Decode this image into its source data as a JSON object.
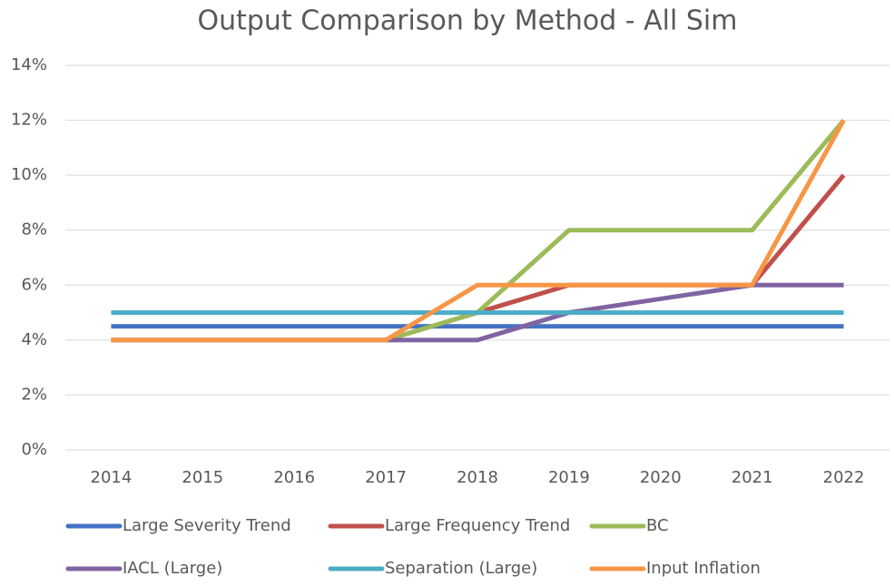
{
  "chart_data": {
    "type": "line",
    "title": "Output Comparison by Method - All Sim",
    "categories": [
      "2014",
      "2015",
      "2016",
      "2017",
      "2018",
      "2019",
      "2020",
      "2021",
      "2022"
    ],
    "series": [
      {
        "name": "Large Severity Trend",
        "color": "#4472c4",
        "values": [
          4.5,
          4.5,
          4.5,
          4.5,
          4.5,
          4.5,
          4.5,
          4.5,
          4.5
        ]
      },
      {
        "name": "Large Frequency Trend",
        "color": "#c0504d",
        "values": [
          4,
          4,
          4,
          4,
          5,
          6,
          6,
          6,
          10
        ]
      },
      {
        "name": "BC",
        "color": "#9bbb59",
        "values": [
          4,
          4,
          4,
          4,
          5,
          8,
          8,
          8,
          12
        ]
      },
      {
        "name": "IACL (Large)",
        "color": "#8064a2",
        "values": [
          4,
          4,
          4,
          4,
          4,
          5,
          5.5,
          6,
          6
        ]
      },
      {
        "name": "Separation (Large)",
        "color": "#4bacc6",
        "values": [
          5,
          5,
          5,
          5,
          5,
          5,
          5,
          5,
          5
        ]
      },
      {
        "name": "Input Inflation",
        "color": "#f79646",
        "values": [
          4,
          4,
          4,
          4,
          6,
          6,
          6,
          6,
          12
        ]
      }
    ],
    "ylim": [
      0,
      14
    ],
    "yticks": [
      {
        "value": 0,
        "label": "0%"
      },
      {
        "value": 2,
        "label": "2%"
      },
      {
        "value": 4,
        "label": "4%"
      },
      {
        "value": 6,
        "label": "6%"
      },
      {
        "value": 8,
        "label": "8%"
      },
      {
        "value": 10,
        "label": "10%"
      },
      {
        "value": 12,
        "label": "12%"
      },
      {
        "value": 14,
        "label": "14%"
      }
    ],
    "grid": true
  }
}
